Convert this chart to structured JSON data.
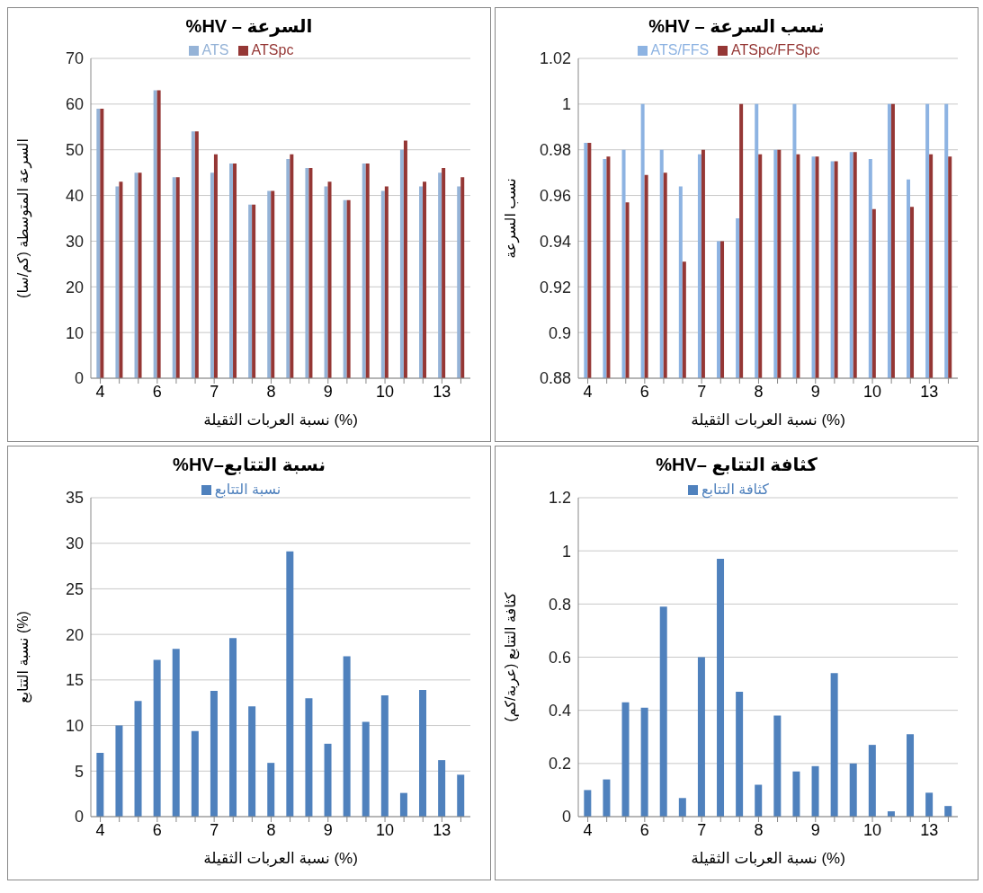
{
  "chart_data": [
    {
      "type": "bar",
      "title": "السرعة – HV%",
      "xlabel": "نسبة العربات الثقيلة (%)",
      "ylabel": "السرعة المتوسطة (كم/سا)",
      "categories": [
        "4",
        null,
        null,
        "6",
        null,
        null,
        "7",
        null,
        null,
        "8",
        null,
        null,
        "9",
        null,
        null,
        "10",
        null,
        null,
        "13",
        null
      ],
      "series": [
        {
          "name": "ATS",
          "color": "#95b3d7",
          "values": [
            59,
            42,
            45,
            63,
            44,
            54,
            45,
            47,
            38,
            41,
            48,
            46,
            42,
            39,
            47,
            41,
            50,
            42,
            45,
            42
          ]
        },
        {
          "name": "ATSpc",
          "color": "#953735",
          "values": [
            59,
            43,
            45,
            63,
            44,
            54,
            49,
            47,
            38,
            41,
            49,
            46,
            43,
            39,
            47,
            42,
            52,
            43,
            46,
            44
          ]
        }
      ],
      "ylim": [
        0,
        70
      ],
      "yticks": [
        0,
        10,
        20,
        30,
        40,
        50,
        60,
        70
      ],
      "grid": "y",
      "legend": "top"
    },
    {
      "type": "bar",
      "title": "نسب السرعة – HV%",
      "xlabel": "نسبة العربات الثقيلة (%)",
      "ylabel": "نسب السرعة",
      "categories": [
        "4",
        null,
        null,
        "6",
        null,
        null,
        "7",
        null,
        null,
        "8",
        null,
        null,
        "9",
        null,
        null,
        "10",
        null,
        null,
        "13",
        null
      ],
      "series": [
        {
          "name": "ATS/FFS",
          "color": "#8db3e2",
          "values": [
            0.983,
            0.976,
            0.98,
            1,
            0.98,
            0.964,
            0.978,
            0.94,
            0.95,
            1,
            0.98,
            1,
            0.977,
            0.975,
            0.979,
            0.976,
            1,
            0.967,
            1,
            1
          ]
        },
        {
          "name": "ATSpc/FFSpc",
          "color": "#953735",
          "values": [
            0.983,
            0.977,
            0.957,
            0.969,
            0.97,
            0.931,
            0.98,
            0.94,
            1,
            0.978,
            0.98,
            0.978,
            0.977,
            0.975,
            0.979,
            0.954,
            1,
            0.955,
            0.978,
            0.977
          ]
        }
      ],
      "ylim": [
        0.88,
        1.02
      ],
      "yticks": [
        0.88,
        0.9,
        0.92,
        0.94,
        0.96,
        0.98,
        1,
        1.02
      ],
      "grid": "y",
      "legend": "top"
    },
    {
      "type": "bar",
      "title": "نسبة التتابع–HV%",
      "xlabel": "نسبة العربات الثقيلة (%)",
      "ylabel": "نسبة التتابع (%)",
      "categories": [
        "4",
        null,
        null,
        "6",
        null,
        null,
        "7",
        null,
        null,
        "8",
        null,
        null,
        "9",
        null,
        null,
        "10",
        null,
        null,
        "13",
        null
      ],
      "series": [
        {
          "name": "نسبة التتابع",
          "color": "#4f81bd",
          "values": [
            7,
            10,
            12.7,
            17.2,
            18.4,
            9.4,
            13.8,
            19.6,
            12.1,
            5.9,
            29.1,
            13,
            8,
            17.6,
            10.4,
            13.3,
            2.6,
            13.9,
            6.2,
            4.6
          ]
        }
      ],
      "ylim": [
        0,
        35
      ],
      "yticks": [
        0,
        5,
        10,
        15,
        20,
        25,
        30,
        35
      ],
      "grid": "y",
      "legend": "top"
    },
    {
      "type": "bar",
      "title": "كثافة التتابع –HV%",
      "xlabel": "نسبة العربات الثقيلة (%)",
      "ylabel": "كثافة التتابع (عربة/كم)",
      "categories": [
        "4",
        null,
        null,
        "6",
        null,
        null,
        "7",
        null,
        null,
        "8",
        null,
        null,
        "9",
        null,
        null,
        "10",
        null,
        null,
        "13",
        null
      ],
      "series": [
        {
          "name": "كثافة التتابع",
          "color": "#4f81bd",
          "values": [
            0.1,
            0.14,
            0.43,
            0.41,
            0.79,
            0.07,
            0.6,
            0.97,
            0.47,
            0.12,
            0.38,
            0.17,
            0.19,
            0.54,
            0.2,
            0.27,
            0.02,
            0.31,
            0.09,
            0.04
          ]
        }
      ],
      "ylim": [
        0,
        1.2
      ],
      "yticks": [
        0,
        0.2,
        0.4,
        0.6,
        0.8,
        1,
        1.2
      ],
      "grid": "y",
      "legend": "top"
    }
  ]
}
